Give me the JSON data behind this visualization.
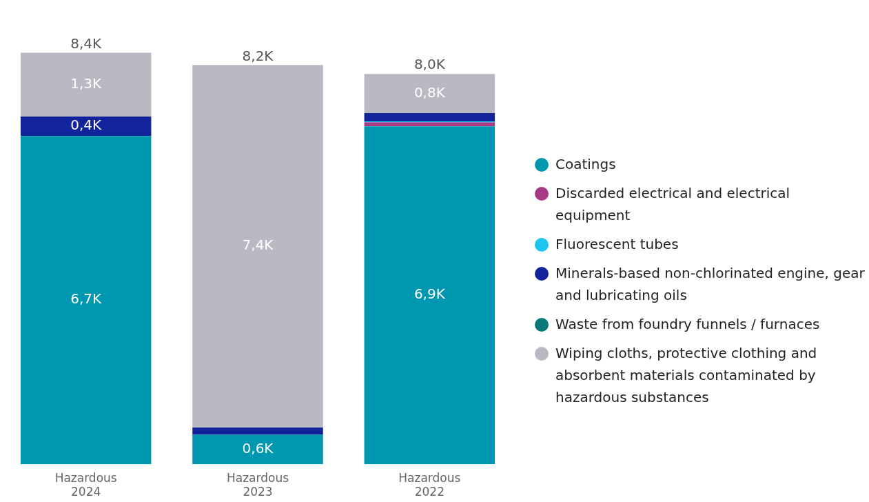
{
  "chart_data": {
    "type": "bar",
    "stacked": true,
    "legend": "right",
    "categories": [
      "Hazardous 2024",
      "Hazardous 2023",
      "Hazardous 2022"
    ],
    "series": [
      {
        "name": "Coatings",
        "color": "#0097b0",
        "values": [
          6.7,
          0.6,
          6.9
        ],
        "value_labels": [
          "6,7K",
          "0,6K",
          "6,9K"
        ]
      },
      {
        "name": "Discarded electrical and electrical equipment",
        "color": "#a63a84",
        "values": [
          null,
          null,
          0.08
        ]
      },
      {
        "name": "Fluorescent tubes",
        "color": "#1cc4f0",
        "values": [
          null,
          null,
          0.02
        ]
      },
      {
        "name": "Minerals-based non-chlorinated engine, gear and lubricating oils",
        "color": "#13239b",
        "values": [
          0.4,
          0.15,
          0.17
        ],
        "value_labels": [
          "0,4K",
          null,
          null
        ]
      },
      {
        "name": "Waste from foundry funnels / furnaces",
        "color": "#0a7a78",
        "values": [
          null,
          null,
          null
        ]
      },
      {
        "name": "Wiping cloths, protective clothing and absorbent materials contaminated by hazardous substances",
        "color": "#b9b9c4",
        "values": [
          1.3,
          7.4,
          0.8
        ],
        "value_labels": [
          "1,3K",
          "7,4K",
          "0,8K"
        ]
      }
    ],
    "totals": [
      "8,4K",
      "8,2K",
      "8,0K"
    ]
  }
}
